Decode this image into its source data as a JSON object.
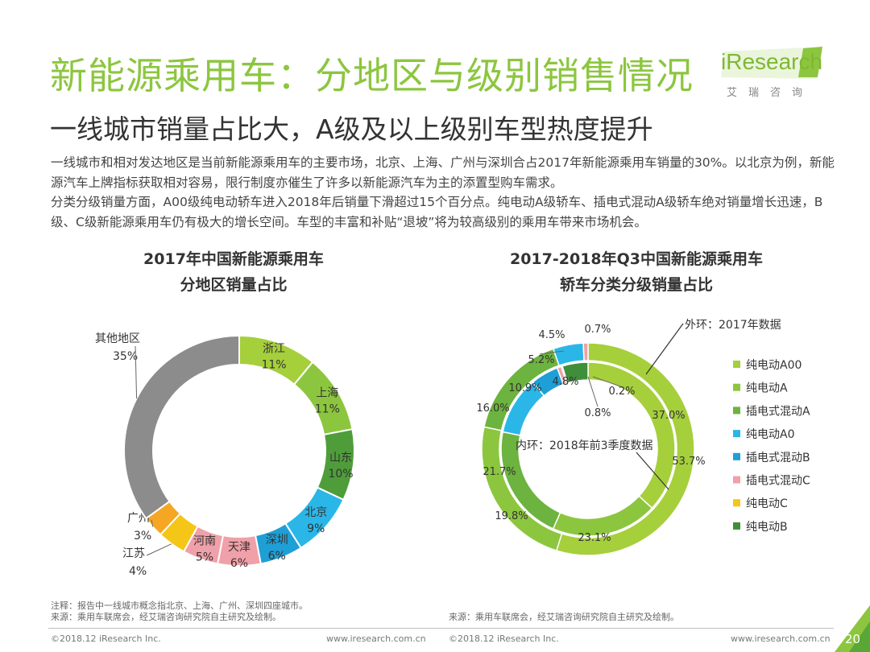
{
  "header": {
    "title": "新能源乘用车：分地区与级别销售情况",
    "subtitle": "一线城市销量占比大，A级及以上级别车型热度提升",
    "logo_text": "iResearch",
    "logo_sub": "艾瑞咨询"
  },
  "description": [
    "一线城市和相对发达地区是当前新能源乘用车的主要市场，北京、上海、广州与深圳合占2017年新能源乘用车销量的30%。以北京为例，新能源汽车上牌指标获取相对容易，限行制度亦催生了许多以新能源汽车为主的添置型购车需求。",
    "分类分级销量方面，A00级纯电动轿车进入2018年后销量下滑超过15个百分点。纯电动A级轿车、插电式混动A级轿车绝对销量增长迅速，B级、C级新能源乘用车仍有极大的增长空间。车型的丰富和补贴“退坡”将为较高级别的乘用车带来市场机会。"
  ],
  "colors": {
    "title_green": "#8cc63f",
    "other_gray": "#8c8c8c",
    "green_light": "#8cc63f",
    "green_mid": "#6db33f",
    "green_dark": "#3f9b3b",
    "cyan": "#2ab7e8",
    "blue": "#1e9fd6",
    "pink": "#f0a0a8",
    "yellow": "#f5c518",
    "orange": "#f5a623"
  },
  "chart_data": [
    {
      "type": "pie",
      "title": "2017年中国新能源乘用车\n分地区销量占比",
      "title_lines": [
        "2017年中国新能源乘用车",
        "分地区销量占比"
      ],
      "slices": [
        {
          "name": "浙江",
          "value": 11,
          "label": "11%",
          "color": "#a6cf3c"
        },
        {
          "name": "上海",
          "value": 11,
          "label": "11%",
          "color": "#8cc63f"
        },
        {
          "name": "山东",
          "value": 10,
          "label": "10%",
          "color": "#4f9d3a"
        },
        {
          "name": "北京",
          "value": 9,
          "label": "9%",
          "color": "#2ab7e8"
        },
        {
          "name": "深圳",
          "value": 6,
          "label": "6%",
          "color": "#1e9fd6"
        },
        {
          "name": "天津",
          "value": 6,
          "label": "6%",
          "color": "#f0a0a8"
        },
        {
          "name": "河南",
          "value": 5,
          "label": "5%",
          "color": "#f0a0a8"
        },
        {
          "name": "江苏",
          "value": 4,
          "label": "4%",
          "color": "#f5c518"
        },
        {
          "name": "广州",
          "value": 3,
          "label": "3%",
          "color": "#f5a623"
        },
        {
          "name": "其他地区",
          "value": 35,
          "label": "35%",
          "color": "#8c8c8c"
        }
      ]
    },
    {
      "type": "pie",
      "title": "2017-2018年Q3中国新能源乘用车\n轿车分类分级销量占比",
      "title_lines": [
        "2017-2018年Q3中国新能源乘用车",
        "轿车分类分级销量占比"
      ],
      "categories": [
        "纯电动A00",
        "纯电动A",
        "插电式混动A",
        "纯电动A0",
        "插电式混动B",
        "插电式混动C",
        "纯电动C",
        "纯电动B"
      ],
      "series": [
        {
          "name": "外环：2017年数据",
          "values": [
            53.7,
            23.1,
            16.0,
            4.5,
            0.0,
            0.7,
            0.0,
            0.0
          ],
          "labels": [
            "53.7%",
            "23.1%",
            "16.0%",
            "4.5%",
            "",
            "0.7%",
            "",
            ""
          ]
        },
        {
          "name": "内环：2018年前3季度数据",
          "values": [
            37.0,
            19.8,
            21.7,
            10.9,
            5.2,
            0.8,
            0.2,
            4.8
          ],
          "labels": [
            "37.0%",
            "19.8%",
            "21.7%",
            "10.9%",
            "5.2%",
            "0.8%",
            "0.2%",
            "4.8%"
          ]
        }
      ],
      "legend": {
        "placement": "right",
        "entries": [
          {
            "name": "纯电动A00",
            "color": "#a6cf3c"
          },
          {
            "name": "纯电动A",
            "color": "#8cc63f"
          },
          {
            "name": "插电式混动A",
            "color": "#6db33f"
          },
          {
            "name": "纯电动A0",
            "color": "#2ab7e8"
          },
          {
            "name": "插电式混动B",
            "color": "#1e9fd6"
          },
          {
            "name": "插电式混动C",
            "color": "#f0a0a8"
          },
          {
            "name": "纯电动C",
            "color": "#f5c518"
          },
          {
            "name": "纯电动B",
            "color": "#3f8f3a"
          }
        ]
      },
      "annotations": [
        "外环：2017年数据",
        "内环：2018年前3季度数据"
      ]
    }
  ],
  "notes": {
    "left_line1": "注释：报告中一线城市概念指北京、上海、广州、深圳四座城市。",
    "left_line2": "来源：乘用车联席会，经艾瑞咨询研究院自主研究及绘制。",
    "right": "来源：乘用车联席会，经艾瑞咨询研究院自主研究及绘制。"
  },
  "footer": {
    "copyright": "©2018.12 iResearch Inc.",
    "website": "www.iresearch.com.cn",
    "page": "20"
  }
}
